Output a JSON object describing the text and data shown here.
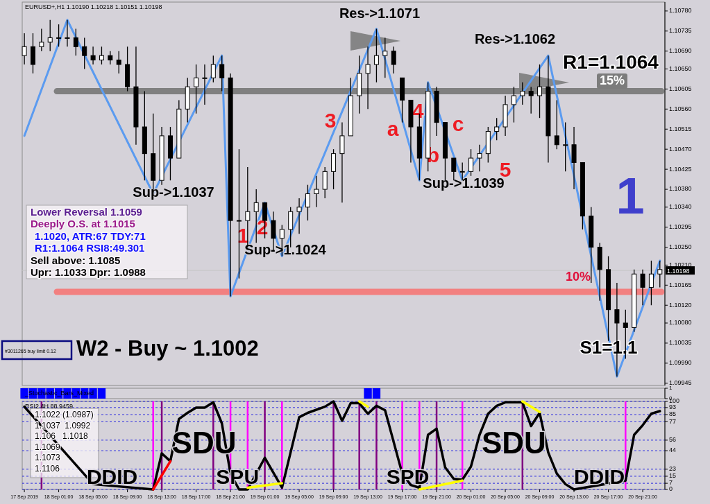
{
  "chart_data": [
    {
      "type": "candlestick",
      "title": "EURUSD+,H1 1.10190 1.10218 1.10151 1.10198",
      "x": [
        "2019-09-17T21:00",
        "2019-09-17T22:00",
        "2019-09-17T23:00",
        "2019-09-18T00:00",
        "2019-09-18T01:00",
        "2019-09-18T02:00",
        "2019-09-18T03:00",
        "2019-09-18T04:00",
        "2019-09-18T05:00",
        "2019-09-18T06:00",
        "2019-09-18T07:00",
        "2019-09-18T08:00",
        "2019-09-18T09:00",
        "2019-09-18T10:00",
        "2019-09-18T11:00",
        "2019-09-18T12:00",
        "2019-09-18T13:00",
        "2019-09-18T14:00",
        "2019-09-18T15:00",
        "2019-09-18T16:00",
        "2019-09-18T17:00",
        "2019-09-18T18:00",
        "2019-09-18T19:00",
        "2019-09-18T20:00",
        "2019-09-18T21:00",
        "2019-09-18T22:00",
        "2019-09-18T23:00",
        "2019-09-19T00:00",
        "2019-09-19T01:00",
        "2019-09-19T02:00",
        "2019-09-19T03:00",
        "2019-09-19T04:00",
        "2019-09-19T05:00",
        "2019-09-19T06:00",
        "2019-09-19T07:00",
        "2019-09-19T08:00",
        "2019-09-19T09:00",
        "2019-09-19T10:00",
        "2019-09-19T11:00",
        "2019-09-19T12:00",
        "2019-09-19T13:00",
        "2019-09-19T14:00",
        "2019-09-19T15:00",
        "2019-09-19T16:00",
        "2019-09-19T17:00",
        "2019-09-19T18:00",
        "2019-09-19T19:00",
        "2019-09-19T20:00",
        "2019-09-19T21:00",
        "2019-09-19T22:00",
        "2019-09-19T23:00",
        "2019-09-20T00:00",
        "2019-09-20T01:00",
        "2019-09-20T02:00",
        "2019-09-20T03:00",
        "2019-09-20T04:00",
        "2019-09-20T05:00",
        "2019-09-20T06:00",
        "2019-09-20T07:00",
        "2019-09-20T08:00",
        "2019-09-20T09:00",
        "2019-09-20T10:00",
        "2019-09-20T11:00",
        "2019-09-20T12:00",
        "2019-09-20T13:00",
        "2019-09-20T14:00",
        "2019-09-20T15:00",
        "2019-09-20T16:00",
        "2019-09-20T17:00",
        "2019-09-20T18:00",
        "2019-09-20T19:00",
        "2019-09-20T20:00",
        "2019-09-20T21:00",
        "2019-09-20T22:00",
        "2019-09-20T23:00"
      ],
      "ohlc": [
        [
          1.1068,
          1.1073,
          1.1066,
          1.107
        ],
        [
          1.107,
          1.1073,
          1.1064,
          1.1066
        ],
        [
          1.107,
          1.1074,
          1.1069,
          1.1071
        ],
        [
          1.1071,
          1.1076,
          1.1069,
          1.1072
        ],
        [
          1.1072,
          1.1075,
          1.107,
          1.1072
        ],
        [
          1.1072,
          1.1076,
          1.107,
          1.1072
        ],
        [
          1.1072,
          1.1074,
          1.1068,
          1.107
        ],
        [
          1.107,
          1.1072,
          1.1065,
          1.1068
        ],
        [
          1.1068,
          1.107,
          1.1066,
          1.1067
        ],
        [
          1.1067,
          1.107,
          1.1066,
          1.1068
        ],
        [
          1.1068,
          1.1069,
          1.1066,
          1.1067
        ],
        [
          1.1067,
          1.1069,
          1.1064,
          1.1066
        ],
        [
          1.1066,
          1.107,
          1.106,
          1.1061
        ],
        [
          1.1061,
          1.107,
          1.1048,
          1.1052
        ],
        [
          1.1052,
          1.106,
          1.104,
          1.1046
        ],
        [
          1.1046,
          1.1055,
          1.1037,
          1.104
        ],
        [
          1.104,
          1.1052,
          1.1039,
          1.105
        ],
        [
          1.105,
          1.1052,
          1.104,
          1.1045
        ],
        [
          1.1045,
          1.1058,
          1.1045,
          1.1056
        ],
        [
          1.1056,
          1.1063,
          1.1053,
          1.1061
        ],
        [
          1.1061,
          1.1066,
          1.1055,
          1.1063
        ],
        [
          1.1063,
          1.1066,
          1.1057,
          1.1063
        ],
        [
          1.1063,
          1.1068,
          1.1062,
          1.1066
        ],
        [
          1.1066,
          1.1068,
          1.106,
          1.1063
        ],
        [
          1.1063,
          1.1064,
          1.1014,
          1.1031
        ],
        [
          1.1031,
          1.1047,
          1.1018,
          1.1031
        ],
        [
          1.1031,
          1.1043,
          1.1025,
          1.1033
        ],
        [
          1.1033,
          1.1038,
          1.1026,
          1.1035
        ],
        [
          1.1035,
          1.1035,
          1.1027,
          1.1031
        ],
        [
          1.1031,
          1.1033,
          1.1024,
          1.1027
        ],
        [
          1.1027,
          1.103,
          1.1023,
          1.1029
        ],
        [
          1.1029,
          1.1034,
          1.1025,
          1.1033
        ],
        [
          1.1033,
          1.1036,
          1.1028,
          1.1034
        ],
        [
          1.1034,
          1.1039,
          1.1031,
          1.1037
        ],
        [
          1.1037,
          1.1041,
          1.1034,
          1.1038
        ],
        [
          1.1038,
          1.1043,
          1.1036,
          1.1042
        ],
        [
          1.1042,
          1.1047,
          1.1038,
          1.1046
        ],
        [
          1.1046,
          1.1053,
          1.1035,
          1.105
        ],
        [
          1.105,
          1.1063,
          1.105,
          1.1059
        ],
        [
          1.1059,
          1.1068,
          1.1055,
          1.1064
        ],
        [
          1.1064,
          1.107,
          1.1056,
          1.1066
        ],
        [
          1.1066,
          1.1074,
          1.1062,
          1.1068
        ],
        [
          1.1068,
          1.1072,
          1.1063,
          1.1069
        ],
        [
          1.1069,
          1.107,
          1.1064,
          1.1066
        ],
        [
          1.1063,
          1.1063,
          1.1053,
          1.1058
        ],
        [
          1.1058,
          1.1058,
          1.1044,
          1.1052
        ],
        [
          1.1052,
          1.1055,
          1.104,
          1.1045
        ],
        [
          1.1045,
          1.1062,
          1.1042,
          1.106
        ],
        [
          1.106,
          1.1061,
          1.105,
          1.1053
        ],
        [
          1.1053,
          1.1053,
          1.104,
          1.1045
        ],
        [
          1.1045,
          1.1045,
          1.104,
          1.1042
        ],
        [
          1.1042,
          1.1044,
          1.104,
          1.1042
        ],
        [
          1.1042,
          1.1047,
          1.1041,
          1.1045
        ],
        [
          1.1045,
          1.1048,
          1.1042,
          1.1046
        ],
        [
          1.1046,
          1.1052,
          1.1044,
          1.1051
        ],
        [
          1.1051,
          1.1054,
          1.1049,
          1.1052
        ],
        [
          1.1052,
          1.1059,
          1.105,
          1.1057
        ],
        [
          1.1057,
          1.1061,
          1.1053,
          1.1059
        ],
        [
          1.1059,
          1.1062,
          1.1057,
          1.106
        ],
        [
          1.106,
          1.1061,
          1.1055,
          1.1059
        ],
        [
          1.1059,
          1.1066,
          1.1054,
          1.1061
        ],
        [
          1.1061,
          1.1068,
          1.1044,
          1.105
        ],
        [
          1.105,
          1.1058,
          1.1047,
          1.1048
        ],
        [
          1.1048,
          1.1053,
          1.1042,
          1.1048
        ],
        [
          1.1048,
          1.1052,
          1.1038,
          1.1044
        ],
        [
          1.1044,
          1.1044,
          1.1029,
          1.1032
        ],
        [
          1.1032,
          1.1034,
          1.1017,
          1.1025
        ],
        [
          1.1025,
          1.1026,
          1.1013,
          1.102
        ],
        [
          1.102,
          1.1023,
          1.1004,
          1.1011
        ],
        [
          1.1011,
          1.1017,
          1.0996,
          1.1008
        ],
        [
          1.1008,
          1.1011,
          1.1,
          1.1007
        ],
        [
          1.1007,
          1.102,
          1.1006,
          1.1019
        ],
        [
          1.1019,
          1.102,
          1.1012,
          1.1016
        ],
        [
          1.1016,
          1.1022,
          1.1012,
          1.1019
        ],
        [
          1.1019,
          1.1022,
          1.1016,
          1.102
        ]
      ],
      "series": [
        {
          "type": "line",
          "color": "#5b9bf0",
          "x": [
            "2019-09-17T21:00",
            "2019-09-18T02:00",
            "2019-09-18T12:00",
            "2019-09-18T20:00",
            "2019-09-18T21:00",
            "2019-09-19T01:00",
            "2019-09-19T03:00",
            "2019-09-19T14:00",
            "2019-09-19T19:00",
            "2019-09-19T20:00",
            "2019-09-20T00:00",
            "2019-09-20T10:00",
            "2019-09-20T18:00",
            "2019-09-20T23:00"
          ],
          "values": [
            1.105,
            1.1076,
            1.1037,
            1.1068,
            1.1014,
            1.1035,
            1.1023,
            1.1074,
            1.104,
            1.1062,
            1.104,
            1.1068,
            1.0996,
            1.1022
          ]
        }
      ],
      "xlim": [
        "2019-09-17T20:45",
        "2019-09-20T23:35"
      ],
      "ylim": [
        1.0994,
        1.108
      ],
      "yticks": [
        {
          "value": 1.1078,
          "label": "1.10780"
        },
        {
          "value": 1.10735,
          "label": "1.10735"
        },
        {
          "value": 1.1069,
          "label": "1.10690"
        },
        {
          "value": 1.1065,
          "label": "1.10650"
        },
        {
          "value": 1.10605,
          "label": "1.10605"
        },
        {
          "value": 1.1056,
          "label": "1.10560"
        },
        {
          "value": 1.10515,
          "label": "1.10515"
        },
        {
          "value": 1.1047,
          "label": "1.10470"
        },
        {
          "value": 1.10425,
          "label": "1.10425"
        },
        {
          "value": 1.1038,
          "label": "1.10380"
        },
        {
          "value": 1.1034,
          "label": "1.10340"
        },
        {
          "value": 1.10295,
          "label": "1.10295"
        },
        {
          "value": 1.1025,
          "label": "1.10250"
        },
        {
          "value": 1.1021,
          "label": "1.10210"
        },
        {
          "value": 1.10165,
          "label": "1.10165"
        },
        {
          "value": 1.1012,
          "label": "1.10120"
        },
        {
          "value": 1.1008,
          "label": "1.10080"
        },
        {
          "value": 1.10035,
          "label": "1.10035"
        },
        {
          "value": 1.0999,
          "label": "1.09990"
        },
        {
          "value": 1.09945,
          "label": "1.09945"
        }
      ],
      "tick_labels": "y",
      "ref_lines": [
        {
          "axis": "y",
          "value": 1.106,
          "color": "#808080"
        },
        {
          "axis": "y",
          "value": 1.1015,
          "color": "#f28080"
        },
        {
          "axis": "y",
          "value": 1.10198,
          "label": "1.10198",
          "color": "#c4c4c4"
        }
      ],
      "annotations": [
        "Res->1.1071",
        "Res->1.1062",
        "Sup->1.1037",
        "Sup->1.1024",
        "Sup->1.1039",
        "R1=1.1064",
        "S1=1.1",
        "1",
        "2",
        "3",
        "a",
        "4",
        "b",
        "c",
        "5",
        "1",
        "15%",
        "10%",
        "Lower Reversal 1.1059",
        "Deeply O.S. at 1.1015",
        "1.1020, ATR:67 TDY:71",
        "R1:1.1064 RSI8:49.301",
        "Sell above: 1.1085",
        "Upr: 1.1033 Dpr: 1.0988",
        "W2 - Buy ~ 1.1002",
        "#3011265 buy limit 0.12"
      ]
    },
    {
      "type": "bar",
      "title": "_Stochastic_Bars_Mixed",
      "color": "#0000ff",
      "x": [
        "2019-09-17T21:00",
        "2019-09-17T22:00",
        "2019-09-17T23:00",
        "2019-09-18T00:00",
        "2019-09-18T01:00",
        "2019-09-18T02:00",
        "2019-09-18T03:00",
        "2019-09-18T04:00",
        "2019-09-18T05:00",
        "2019-09-18T06:00",
        "2019-09-19T13:00",
        "2019-09-19T14:00"
      ],
      "values": [
        1,
        1,
        1,
        1,
        1,
        1,
        1,
        1,
        1,
        1,
        1,
        1
      ],
      "xlim": [
        "2019-09-17T20:45",
        "2019-09-20T23:35"
      ],
      "ylim": [
        0,
        1
      ],
      "yticks": [
        0,
        1
      ],
      "tick_labels": "y"
    },
    {
      "type": "line",
      "title": "RSI2 4H 88.9459",
      "series": [
        {
          "color": "#000000",
          "x": [
            "2019-09-17T21:00",
            "2019-09-18T05:00",
            "2019-09-18T12:00",
            "2019-09-18T13:00",
            "2019-09-18T14:00",
            "2019-09-18T15:00",
            "2019-09-18T16:00",
            "2019-09-18T17:00",
            "2019-09-18T18:00",
            "2019-09-18T19:00",
            "2019-09-18T20:00",
            "2019-09-18T21:00",
            "2019-09-18T22:00",
            "2019-09-18T23:00",
            "2019-09-19T01:00",
            "2019-09-19T03:00",
            "2019-09-19T05:00",
            "2019-09-19T06:00",
            "2019-09-19T08:00",
            "2019-09-19T09:00",
            "2019-09-19T10:00",
            "2019-09-19T11:00",
            "2019-09-19T12:00",
            "2019-09-19T13:00",
            "2019-09-19T14:00",
            "2019-09-19T15:00",
            "2019-09-19T17:00",
            "2019-09-19T18:00",
            "2019-09-19T19:00",
            "2019-09-19T20:00",
            "2019-09-19T21:00",
            "2019-09-19T22:00",
            "2019-09-19T23:00",
            "2019-09-20T00:00",
            "2019-09-20T01:00",
            "2019-09-20T02:00",
            "2019-09-20T03:00",
            "2019-09-20T04:00",
            "2019-09-20T05:00",
            "2019-09-20T07:00",
            "2019-09-20T08:00",
            "2019-09-20T09:00",
            "2019-09-20T10:00",
            "2019-09-20T11:00",
            "2019-09-20T12:00",
            "2019-09-20T13:00",
            "2019-09-20T19:00",
            "2019-09-20T20:00",
            "2019-09-20T21:00",
            "2019-09-20T22:00",
            "2019-09-20T23:00"
          ],
          "values": [
            94,
            6,
            0,
            41,
            32,
            80,
            87,
            93,
            93,
            99,
            75,
            18,
            0,
            0,
            36,
            2,
            82,
            87,
            94,
            100,
            78,
            98,
            98,
            86,
            95,
            90,
            18,
            5,
            2,
            62,
            69,
            25,
            12,
            11,
            26,
            62,
            86,
            95,
            99,
            99,
            72,
            87,
            42,
            18,
            6,
            0,
            10,
            62,
            73,
            86,
            89
          ]
        },
        {
          "color": "#ff0000",
          "x": [
            "2019-09-18T12:00",
            "2019-09-18T14:00"
          ],
          "values": [
            0,
            32
          ]
        },
        {
          "color": "#ffff00",
          "x": [
            "2019-09-18T23:00",
            "2019-09-19T03:00"
          ],
          "values": [
            2,
            7
          ]
        },
        {
          "color": "#ffff00",
          "x": [
            "2019-09-19T12:00",
            "2019-09-19T13:00"
          ],
          "values": [
            100,
            94
          ]
        },
        {
          "color": "#ffff00",
          "x": [
            "2019-09-19T19:00",
            "2019-09-20T00:00"
          ],
          "values": [
            0,
            10
          ]
        },
        {
          "color": "#ffff00",
          "x": [
            "2019-09-20T07:00",
            "2019-09-20T09:00"
          ],
          "values": [
            100,
            88
          ]
        }
      ],
      "xlim": [
        "2019-09-17T20:45",
        "2019-09-20T23:35"
      ],
      "xticks": [
        {
          "value": "2019-09-17T21:00",
          "label": "17 Sep 2019"
        },
        {
          "value": "2019-09-18T01:00",
          "label": "18 Sep 01:00"
        },
        {
          "value": "2019-09-18T05:00",
          "label": "18 Sep 05:00"
        },
        {
          "value": "2019-09-18T09:00",
          "label": "18 Sep 09:00"
        },
        {
          "value": "2019-09-18T13:00",
          "label": "18 Sep 13:00"
        },
        {
          "value": "2019-09-18T17:00",
          "label": "18 Sep 17:00"
        },
        {
          "value": "2019-09-18T21:00",
          "label": "18 Sep 21:00"
        },
        {
          "value": "2019-09-19T01:00",
          "label": "19 Sep 01:00"
        },
        {
          "value": "2019-09-19T05:00",
          "label": "19 Sep 05:00"
        },
        {
          "value": "2019-09-19T09:00",
          "label": "19 Sep 09:00"
        },
        {
          "value": "2019-09-19T13:00",
          "label": "19 Sep 13:00"
        },
        {
          "value": "2019-09-19T17:00",
          "label": "19 Sep 17:00"
        },
        {
          "value": "2019-09-19T21:00",
          "label": "19 Sep 21:00"
        },
        {
          "value": "2019-09-20T01:00",
          "label": "20 Sep 01:00"
        },
        {
          "value": "2019-09-20T05:00",
          "label": "20 Sep 05:00"
        },
        {
          "value": "2019-09-20T09:00",
          "label": "20 Sep 09:00"
        },
        {
          "value": "2019-09-20T13:00",
          "label": "20 Sep 13:00"
        },
        {
          "value": "2019-09-20T17:00",
          "label": "20 Sep 17:00"
        },
        {
          "value": "2019-09-20T21:00",
          "label": "20 Sep 21:00"
        }
      ],
      "ylim": [
        0,
        100
      ],
      "yticks": [
        0,
        7,
        15,
        23,
        44,
        56,
        77,
        85,
        93,
        100
      ],
      "grid": "y",
      "ref_lines": [
        {
          "axis": "x",
          "value": "2019-09-18T12:00",
          "color": "#ff00ff"
        },
        {
          "axis": "x",
          "value": "2019-09-18T21:00",
          "color": "#ff00ff"
        },
        {
          "axis": "x",
          "value": "2019-09-18T23:00",
          "color": "#ff00ff"
        },
        {
          "axis": "x",
          "value": "2019-09-19T03:00",
          "color": "#ff00ff"
        },
        {
          "axis": "x",
          "value": "2019-09-19T17:00",
          "color": "#ff00ff"
        },
        {
          "axis": "x",
          "value": "2019-09-19T19:00",
          "color": "#ff00ff"
        },
        {
          "axis": "x",
          "value": "2019-09-20T00:00",
          "color": "#ff00ff"
        },
        {
          "axis": "x",
          "value": "2019-09-20T19:00",
          "color": "#ff00ff"
        },
        {
          "axis": "x",
          "value": "2019-09-17T23:00",
          "color": "#800080"
        },
        {
          "axis": "x",
          "value": "2019-09-18T13:00",
          "color": "#800080"
        },
        {
          "axis": "x",
          "value": "2019-09-18T19:00",
          "color": "#800080"
        },
        {
          "axis": "x",
          "value": "2019-09-19T01:00",
          "color": "#800080"
        },
        {
          "axis": "x",
          "value": "2019-09-19T09:00",
          "color": "#800080"
        },
        {
          "axis": "x",
          "value": "2019-09-19T12:00",
          "color": "#800080"
        },
        {
          "axis": "x",
          "value": "2019-09-19T14:00",
          "color": "#800080"
        },
        {
          "axis": "x",
          "value": "2019-09-19T21:00",
          "color": "#800080"
        },
        {
          "axis": "x",
          "value": "2019-09-20T07:00",
          "color": "#800080"
        }
      ],
      "annotations": [
        "1.1022 (1.0987)",
        "1.1037  1.0992",
        "1.106   1.1018",
        "1.1069",
        "1.1073",
        "1.1106",
        "SDU",
        "DDID",
        "SPU",
        "SPD",
        "SDU",
        "DDID"
      ]
    }
  ]
}
